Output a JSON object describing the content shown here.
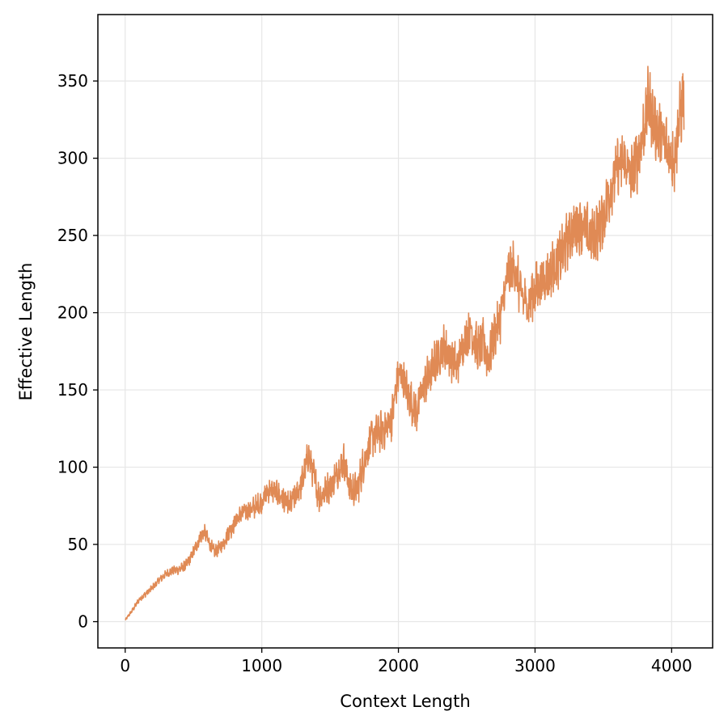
{
  "chart_data": {
    "type": "line",
    "title": "",
    "xlabel": "Context Length",
    "ylabel": "Effective Length",
    "xlim": [
      -200,
      4300
    ],
    "ylim": [
      -17,
      393
    ],
    "x_ticks": [
      0,
      1000,
      2000,
      3000,
      4000
    ],
    "y_ticks": [
      0,
      50,
      100,
      150,
      200,
      250,
      300,
      350
    ],
    "x_tick_labels": [
      "0",
      "1000",
      "2000",
      "3000",
      "4000"
    ],
    "y_tick_labels": [
      "0",
      "50",
      "100",
      "150",
      "200",
      "250",
      "300",
      "350"
    ],
    "grid": true,
    "legend": "none",
    "series": [
      {
        "color": "#e08a55",
        "noise_note_sampled_envelope": true,
        "x": [
          0,
          50,
          100,
          150,
          200,
          250,
          300,
          350,
          400,
          450,
          500,
          550,
          580,
          620,
          650,
          700,
          750,
          800,
          850,
          900,
          950,
          1000,
          1050,
          1100,
          1150,
          1200,
          1250,
          1300,
          1340,
          1380,
          1420,
          1470,
          1520,
          1560,
          1600,
          1650,
          1700,
          1750,
          1800,
          1850,
          1900,
          1950,
          2000,
          2030,
          2080,
          2130,
          2180,
          2230,
          2280,
          2330,
          2380,
          2430,
          2480,
          2530,
          2580,
          2620,
          2660,
          2700,
          2750,
          2800,
          2850,
          2900,
          2950,
          3000,
          3050,
          3100,
          3150,
          3200,
          3250,
          3300,
          3350,
          3400,
          3450,
          3500,
          3550,
          3600,
          3650,
          3700,
          3750,
          3800,
          3830,
          3870,
          3920,
          3970,
          4020,
          4060,
          4090
        ],
        "values": [
          1,
          7,
          14,
          18,
          22,
          27,
          31,
          33,
          34,
          37,
          45,
          55,
          58,
          50,
          45,
          48,
          57,
          64,
          70,
          72,
          74,
          78,
          85,
          84,
          80,
          75,
          82,
          92,
          108,
          95,
          80,
          85,
          90,
          98,
          104,
          85,
          86,
          105,
          118,
          122,
          125,
          131,
          160,
          158,
          145,
          135,
          152,
          160,
          170,
          178,
          172,
          165,
          182,
          190,
          175,
          180,
          170,
          185,
          198,
          225,
          230,
          210,
          205,
          215,
          220,
          225,
          232,
          238,
          250,
          256,
          258,
          248,
          252,
          262,
          280,
          292,
          298,
          288,
          300,
          320,
          338,
          322,
          315,
          305,
          300,
          328,
          340
        ],
        "amplitude": [
          0.5,
          1,
          1.5,
          1.5,
          2,
          2,
          2,
          2.5,
          2.5,
          3,
          3.5,
          4,
          4,
          4,
          4,
          4.5,
          5,
          5,
          5.5,
          5.5,
          6,
          6,
          6.5,
          6.5,
          7,
          7,
          7.5,
          8,
          8.5,
          8.5,
          8.5,
          8.5,
          9,
          9,
          9.5,
          9.5,
          9.5,
          10,
          10,
          10.5,
          10.5,
          11,
          11,
          11,
          11,
          11,
          11.5,
          11.5,
          12,
          12,
          12,
          12,
          12.5,
          12.5,
          13,
          13,
          13,
          13.5,
          13.5,
          14,
          14,
          14,
          14,
          14.5,
          14.5,
          15,
          15,
          15,
          15.5,
          15.5,
          16,
          16,
          16,
          16.5,
          16.5,
          17,
          17,
          17.5,
          17.5,
          18,
          18,
          18,
          18.5,
          18.5,
          19,
          19,
          19
        ]
      }
    ]
  }
}
